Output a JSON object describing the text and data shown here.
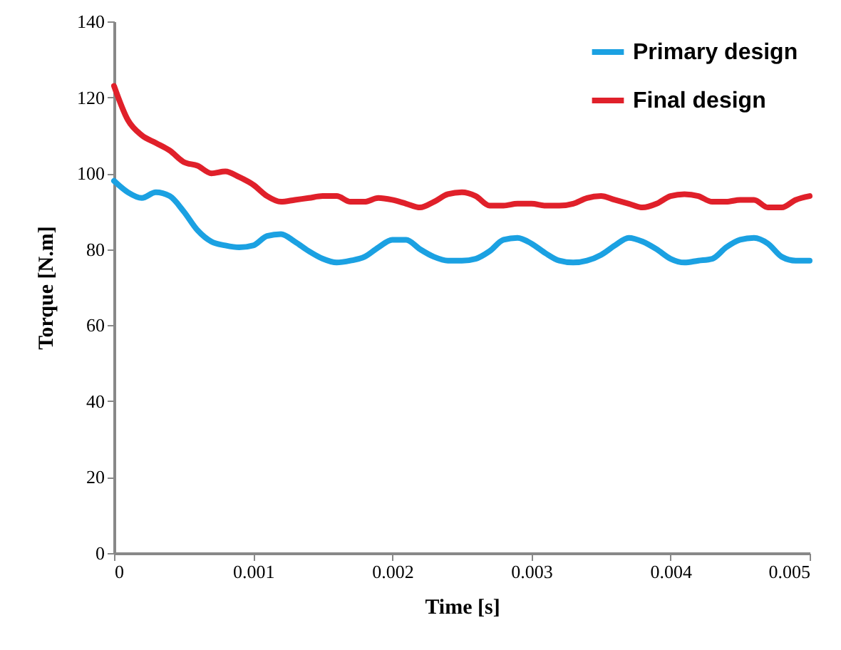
{
  "chart_data": {
    "type": "line",
    "xlabel": "Time [s]",
    "ylabel": "Torque [N.m]",
    "x": [
      0,
      0.0001,
      0.0002,
      0.0003,
      0.0004,
      0.0005,
      0.0006,
      0.0007,
      0.0008,
      0.0009,
      0.001,
      0.0011,
      0.0012,
      0.0013,
      0.0014,
      0.0015,
      0.0016,
      0.0017,
      0.0018,
      0.0019,
      0.002,
      0.0021,
      0.0022,
      0.0023,
      0.0024,
      0.0025,
      0.0026,
      0.0027,
      0.0028,
      0.0029,
      0.003,
      0.0031,
      0.0032,
      0.0033,
      0.0034,
      0.0035,
      0.0036,
      0.0037,
      0.0038,
      0.0039,
      0.004,
      0.0041,
      0.0042,
      0.0043,
      0.0044,
      0.0045,
      0.0046,
      0.0047,
      0.0048,
      0.0049,
      0.005
    ],
    "series": [
      {
        "name": "Primary design",
        "color": "#1ba1e2",
        "values": [
          98,
          95,
          93.5,
          95,
          94,
          90,
          85,
          82,
          81,
          80.5,
          81,
          83.5,
          84,
          82,
          79.5,
          77.5,
          76.5,
          77,
          78,
          80.5,
          82.5,
          82.5,
          80,
          78,
          77,
          77,
          77.5,
          79.5,
          82.5,
          83,
          81.5,
          79,
          77,
          76.5,
          77,
          78.5,
          81,
          83,
          82,
          80,
          77.5,
          76.5,
          77,
          77.5,
          80.5,
          82.5,
          83,
          81.5,
          78,
          77,
          77
        ]
      },
      {
        "name": "Final design",
        "color": "#e0202a",
        "values": [
          123,
          114,
          110,
          108,
          106,
          103,
          102,
          100,
          100.5,
          99,
          97,
          94,
          92.5,
          93,
          93.5,
          94,
          94,
          92.5,
          92.5,
          93.5,
          93,
          92,
          91,
          92.5,
          94.5,
          95,
          94,
          91.5,
          91.5,
          92,
          92,
          91.5,
          91.5,
          92,
          93.5,
          94,
          93,
          92,
          91,
          92,
          94,
          94.5,
          94,
          92.5,
          92.5,
          93,
          93,
          91,
          91,
          93,
          94
        ]
      }
    ],
    "xlim": [
      0,
      0.005
    ],
    "xticks": [
      0,
      0.001,
      0.002,
      0.003,
      0.004,
      0.005
    ],
    "ylim": [
      0,
      140
    ],
    "yticks": [
      0,
      20,
      40,
      60,
      80,
      100,
      120,
      140
    ],
    "legend": "top right",
    "line_style": "solid"
  }
}
